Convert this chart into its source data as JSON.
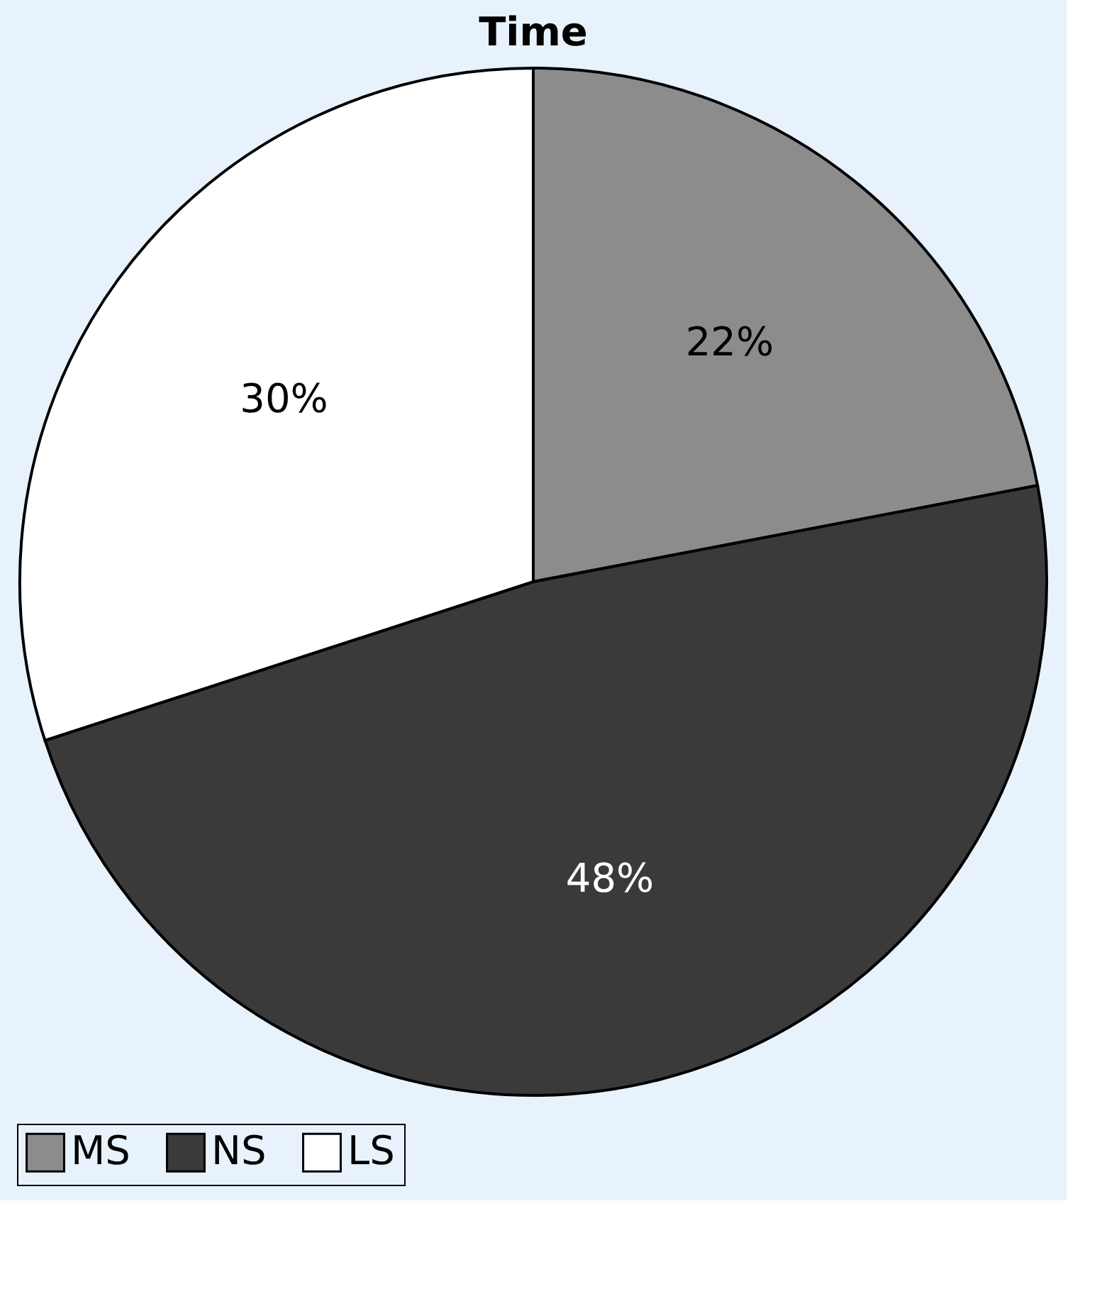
{
  "chart_data": {
    "type": "pie",
    "title": "Time",
    "categories": [
      "MS",
      "NS",
      "LS"
    ],
    "values": [
      22,
      48,
      30
    ],
    "colors": [
      "#8c8c8c",
      "#3a3a3a",
      "#ffffff"
    ],
    "value_labels": [
      "22%",
      "48%",
      "30%"
    ],
    "legend": "bottom"
  }
}
